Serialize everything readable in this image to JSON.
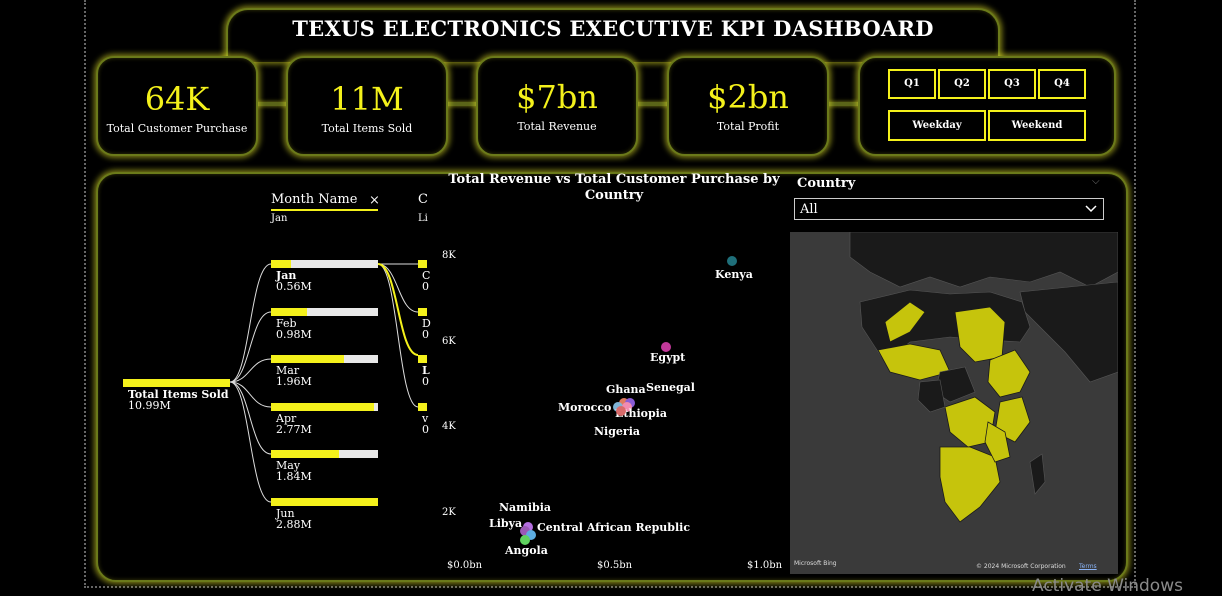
{
  "dashboard": {
    "title": "TEXUS ELECTRONICS EXECUTIVE KPI DASHBOARD"
  },
  "kpis": [
    {
      "value": "64K",
      "label": "Total Customer Purchase"
    },
    {
      "value": "11M",
      "label": "Total Items Sold"
    },
    {
      "value": "$7bn",
      "label": "Total Revenue"
    },
    {
      "value": "$2bn",
      "label": "Total Profit"
    }
  ],
  "slicers": {
    "quarters": [
      "Q1",
      "Q2",
      "Q3",
      "Q4"
    ],
    "daytype": [
      "Weekday",
      "Weekend"
    ]
  },
  "decomposition": {
    "header1": "Month Name",
    "header1_sub": "Jan",
    "header1_clear": "×",
    "header2": "C",
    "header2_sub": "Li",
    "root_label": "Total Items Sold",
    "root_value": "10.99M",
    "months": [
      {
        "name": "Jan",
        "value": "0.56M",
        "fill": 0.19,
        "selected": true
      },
      {
        "name": "Feb",
        "value": "0.98M",
        "fill": 0.34,
        "selected": false
      },
      {
        "name": "Mar",
        "value": "1.96M",
        "fill": 0.68,
        "selected": false
      },
      {
        "name": "Apr",
        "value": "2.77M",
        "fill": 0.96,
        "selected": false
      },
      {
        "name": "May",
        "value": "1.84M",
        "fill": 0.64,
        "selected": false
      },
      {
        "name": "Jun",
        "value": "2.88M",
        "fill": 1.0,
        "selected": false
      }
    ],
    "children": [
      {
        "l1": "C",
        "l2": "0"
      },
      {
        "l1": "D",
        "l2": "0"
      },
      {
        "l1": "L",
        "l2": "0"
      },
      {
        "l1": "v",
        "l2": "0"
      }
    ]
  },
  "scatter": {
    "title": "Total Revenue vs Total Customer Purchase by Country"
  },
  "chart_data": {
    "type": "scatter",
    "title": "Total Revenue vs Total Customer Purchase by Country",
    "xlabel": "",
    "ylabel": "",
    "x_ticks": [
      "$0.0bn",
      "$0.5bn",
      "$1.0bn"
    ],
    "y_ticks": [
      "8K",
      "6K",
      "4K",
      "2K"
    ],
    "xlim": [
      0.0,
      1.0
    ],
    "ylim": [
      1.0,
      8.3
    ],
    "points": [
      {
        "label": "Kenya",
        "x": 0.89,
        "y": 7.9,
        "color": "#1f6f7a"
      },
      {
        "label": "Egypt",
        "x": 0.67,
        "y": 5.9,
        "color": "#c2399a"
      },
      {
        "label": "Ghana",
        "x": 0.53,
        "y": 4.6,
        "color": "#e07a5f"
      },
      {
        "label": "Senegal",
        "x": 0.55,
        "y": 4.6,
        "color": "#8a5cd6"
      },
      {
        "label": "Morocco",
        "x": 0.51,
        "y": 4.5,
        "color": "#7fb3d5"
      },
      {
        "label": "Ethiopia",
        "x": 0.54,
        "y": 4.5,
        "color": "#f28cb1"
      },
      {
        "label": "Nigeria",
        "x": 0.52,
        "y": 4.4,
        "color": "#d96b6b"
      },
      {
        "label": "Namibia",
        "x": 0.21,
        "y": 1.7,
        "color": "#b46ee0"
      },
      {
        "label": "Libya",
        "x": 0.2,
        "y": 1.6,
        "color": "#9b59b6"
      },
      {
        "label": "Central African Republic",
        "x": 0.22,
        "y": 1.5,
        "color": "#5dade2"
      },
      {
        "label": "Angola",
        "x": 0.2,
        "y": 1.4,
        "color": "#5fd35f"
      }
    ]
  },
  "map": {
    "filter_title": "Country",
    "filter_value": "All",
    "attribution_left": "Microsoft Bing",
    "attribution_right": "© 2024 Microsoft Corporation",
    "terms": "Terms",
    "land_color": "#1a1a1a",
    "highlight_color": "#c6c40c"
  },
  "system": {
    "watermark": "Activate Windows"
  },
  "colors": {
    "accent": "#f4f11b",
    "frame": "#6b7a1a"
  }
}
